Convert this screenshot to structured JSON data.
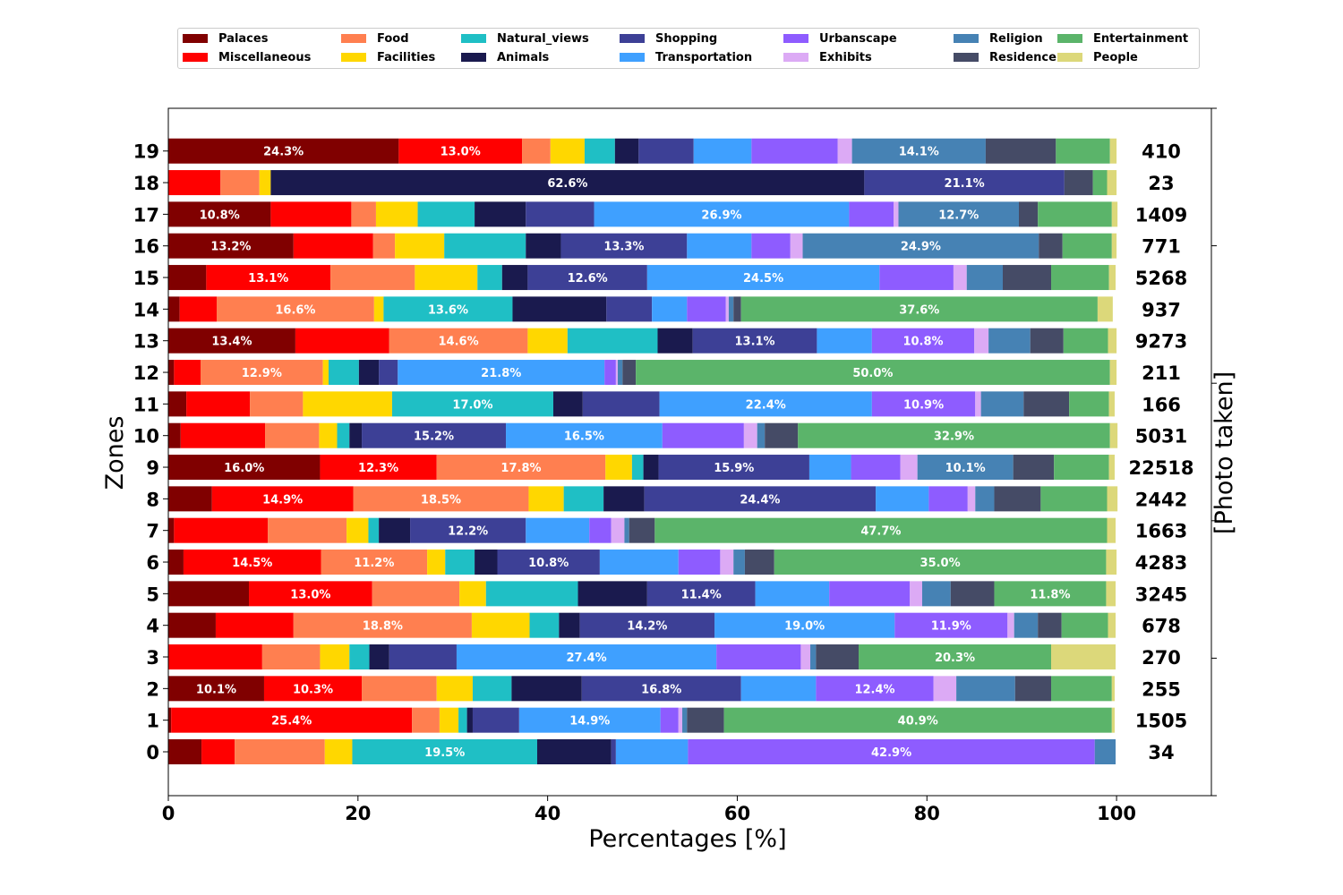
{
  "chart_data": {
    "type": "bar",
    "orientation": "horizontal",
    "stacked": true,
    "xlabel": "Percentages [%]",
    "ylabel": "Zones",
    "right_ylabel": "[Photo taken]",
    "xlim": [
      0,
      110
    ],
    "xticks": [
      0,
      20,
      40,
      60,
      80,
      100
    ],
    "grid": false,
    "legend_position": "top",
    "categories": [
      "19",
      "18",
      "17",
      "16",
      "15",
      "14",
      "13",
      "12",
      "11",
      "10",
      "9",
      "8",
      "7",
      "6",
      "5",
      "4",
      "3",
      "2",
      "1",
      "0"
    ],
    "photo_counts": [
      "410",
      "23",
      "1409",
      "771",
      "5268",
      "937",
      "9273",
      "211",
      "166",
      "5031",
      "22518",
      "2442",
      "1663",
      "4283",
      "3245",
      "678",
      "270",
      "255",
      "1505",
      "34"
    ],
    "series": [
      {
        "name": "Palaces",
        "color": "#800000",
        "values": [
          24.3,
          0,
          10.8,
          13.2,
          4.0,
          1.2,
          13.4,
          0.6,
          1.9,
          1.3,
          16.0,
          4.6,
          0.6,
          1.6,
          8.5,
          5.0,
          0,
          10.1,
          0.3,
          3.5
        ]
      },
      {
        "name": "Miscellaneous",
        "color": "#ff0000",
        "values": [
          13.0,
          5.5,
          8.5,
          8.4,
          13.1,
          3.9,
          9.9,
          2.8,
          6.7,
          8.9,
          12.3,
          14.9,
          9.9,
          14.5,
          13.0,
          8.2,
          9.9,
          10.3,
          25.4,
          3.5
        ]
      },
      {
        "name": "Food",
        "color": "#ff7f50",
        "values": [
          3.0,
          4.1,
          2.6,
          2.3,
          8.9,
          16.6,
          14.6,
          12.9,
          5.6,
          5.7,
          17.8,
          18.5,
          8.3,
          11.2,
          9.2,
          18.8,
          6.1,
          7.9,
          2.9,
          9.5
        ]
      },
      {
        "name": "Facilities",
        "color": "#ffd700",
        "values": [
          3.6,
          1.2,
          4.4,
          5.2,
          6.6,
          1.0,
          4.2,
          0.6,
          9.4,
          1.9,
          2.8,
          3.7,
          2.3,
          1.9,
          2.8,
          6.1,
          3.1,
          3.8,
          2.0,
          2.9
        ]
      },
      {
        "name": "Natural_views",
        "color": "#1fbfc5",
        "values": [
          3.2,
          0,
          6.0,
          8.6,
          2.6,
          13.6,
          9.5,
          3.2,
          17.0,
          1.3,
          1.2,
          4.2,
          1.1,
          3.1,
          9.7,
          3.1,
          2.1,
          4.1,
          0.9,
          19.5
        ]
      },
      {
        "name": "Animals",
        "color": "#1a1a4e",
        "values": [
          2.5,
          62.6,
          5.4,
          3.7,
          2.7,
          9.9,
          3.7,
          2.1,
          3.1,
          1.3,
          1.6,
          4.3,
          3.3,
          2.4,
          7.3,
          2.2,
          2.1,
          7.4,
          0.6,
          7.8
        ]
      },
      {
        "name": "Shopping",
        "color": "#3d4096",
        "values": [
          5.8,
          21.1,
          7.2,
          13.3,
          12.6,
          4.8,
          13.1,
          2.0,
          8.1,
          15.2,
          15.9,
          24.4,
          12.2,
          10.8,
          11.4,
          14.2,
          7.1,
          16.8,
          4.9,
          0.5
        ]
      },
      {
        "name": "Transportation",
        "color": "#3fa0ff",
        "values": [
          6.1,
          0,
          26.9,
          6.8,
          24.5,
          3.7,
          5.8,
          21.8,
          22.4,
          16.5,
          4.4,
          5.6,
          6.7,
          8.3,
          7.8,
          19.0,
          27.4,
          7.9,
          14.9,
          7.6
        ]
      },
      {
        "name": "Urbanscape",
        "color": "#8e5cff",
        "values": [
          9.1,
          0,
          4.7,
          4.1,
          7.8,
          4.1,
          10.8,
          1.2,
          10.9,
          8.6,
          5.2,
          4.1,
          2.3,
          4.4,
          8.5,
          11.9,
          8.9,
          12.4,
          1.9,
          42.9
        ]
      },
      {
        "name": "Exhibits",
        "color": "#dcaaf5",
        "values": [
          1.5,
          0,
          0.5,
          1.3,
          1.4,
          0.3,
          1.5,
          0.2,
          0.6,
          1.4,
          1.8,
          0.8,
          1.4,
          1.4,
          1.3,
          0.7,
          1.0,
          2.4,
          0.4,
          0
        ]
      },
      {
        "name": "Religion",
        "color": "#4682b4",
        "values": [
          14.1,
          0,
          12.7,
          24.9,
          3.8,
          0.5,
          4.4,
          0.5,
          4.5,
          0.8,
          10.1,
          2.0,
          0.5,
          1.2,
          3.0,
          2.5,
          0.6,
          6.2,
          0.5,
          2.2
        ]
      },
      {
        "name": "Residence",
        "color": "#454b66",
        "values": [
          7.4,
          3.0,
          2.0,
          2.5,
          5.1,
          0.8,
          3.5,
          1.4,
          4.8,
          3.5,
          4.3,
          4.9,
          2.7,
          3.1,
          4.6,
          2.5,
          4.5,
          3.8,
          3.9,
          0
        ]
      },
      {
        "name": "Entertainment",
        "color": "#5bb46a",
        "values": [
          5.7,
          1.5,
          7.8,
          5.2,
          6.1,
          37.6,
          4.7,
          50.0,
          4.2,
          32.9,
          5.8,
          7.0,
          47.7,
          35.0,
          11.8,
          4.9,
          20.3,
          6.4,
          40.9,
          0
        ]
      },
      {
        "name": "People",
        "color": "#dcd87a",
        "values": [
          0.7,
          1.0,
          0.6,
          0.5,
          0.7,
          1.6,
          0.9,
          0.7,
          0.6,
          0.8,
          0.6,
          1.1,
          0.9,
          1.1,
          1.0,
          0.8,
          6.8,
          0.3,
          0.3,
          0
        ]
      }
    ],
    "data_labels": [
      {
        "category": "19",
        "series": "Palaces",
        "text": "24.3%"
      },
      {
        "category": "19",
        "series": "Miscellaneous",
        "text": "13.0%"
      },
      {
        "category": "19",
        "series": "Religion",
        "text": "14.1%"
      },
      {
        "category": "18",
        "series": "Animals",
        "text": "62.6%"
      },
      {
        "category": "18",
        "series": "Shopping",
        "text": "21.1%"
      },
      {
        "category": "17",
        "series": "Palaces",
        "text": "10.8%"
      },
      {
        "category": "17",
        "series": "Transportation",
        "text": "26.9%"
      },
      {
        "category": "17",
        "series": "Religion",
        "text": "12.7%"
      },
      {
        "category": "16",
        "series": "Palaces",
        "text": "13.2%"
      },
      {
        "category": "16",
        "series": "Shopping",
        "text": "13.3%"
      },
      {
        "category": "16",
        "series": "Religion",
        "text": "24.9%"
      },
      {
        "category": "15",
        "series": "Miscellaneous",
        "text": "13.1%"
      },
      {
        "category": "15",
        "series": "Shopping",
        "text": "12.6%"
      },
      {
        "category": "15",
        "series": "Transportation",
        "text": "24.5%"
      },
      {
        "category": "14",
        "series": "Food",
        "text": "16.6%"
      },
      {
        "category": "14",
        "series": "Natural_views",
        "text": "13.6%"
      },
      {
        "category": "14",
        "series": "Entertainment",
        "text": "37.6%"
      },
      {
        "category": "13",
        "series": "Palaces",
        "text": "13.4%"
      },
      {
        "category": "13",
        "series": "Food",
        "text": "14.6%"
      },
      {
        "category": "13",
        "series": "Shopping",
        "text": "13.1%"
      },
      {
        "category": "13",
        "series": "Urbanscape",
        "text": "10.8%"
      },
      {
        "category": "12",
        "series": "Food",
        "text": "12.9%"
      },
      {
        "category": "12",
        "series": "Transportation",
        "text": "21.8%"
      },
      {
        "category": "12",
        "series": "Entertainment",
        "text": "50.0%"
      },
      {
        "category": "11",
        "series": "Natural_views",
        "text": "17.0%"
      },
      {
        "category": "11",
        "series": "Transportation",
        "text": "22.4%"
      },
      {
        "category": "11",
        "series": "Urbanscape",
        "text": "10.9%"
      },
      {
        "category": "10",
        "series": "Shopping",
        "text": "15.2%"
      },
      {
        "category": "10",
        "series": "Transportation",
        "text": "16.5%"
      },
      {
        "category": "10",
        "series": "Entertainment",
        "text": "32.9%"
      },
      {
        "category": "9",
        "series": "Palaces",
        "text": "16.0%"
      },
      {
        "category": "9",
        "series": "Miscellaneous",
        "text": "12.3%"
      },
      {
        "category": "9",
        "series": "Food",
        "text": "17.8%"
      },
      {
        "category": "9",
        "series": "Shopping",
        "text": "15.9%"
      },
      {
        "category": "9",
        "series": "Religion",
        "text": "10.1%"
      },
      {
        "category": "8",
        "series": "Miscellaneous",
        "text": "14.9%"
      },
      {
        "category": "8",
        "series": "Food",
        "text": "18.5%"
      },
      {
        "category": "8",
        "series": "Shopping",
        "text": "24.4%"
      },
      {
        "category": "7",
        "series": "Shopping",
        "text": "12.2%"
      },
      {
        "category": "7",
        "series": "Entertainment",
        "text": "47.7%"
      },
      {
        "category": "6",
        "series": "Miscellaneous",
        "text": "14.5%"
      },
      {
        "category": "6",
        "series": "Food",
        "text": "11.2%"
      },
      {
        "category": "6",
        "series": "Shopping",
        "text": "10.8%"
      },
      {
        "category": "6",
        "series": "Entertainment",
        "text": "35.0%"
      },
      {
        "category": "5",
        "series": "Miscellaneous",
        "text": "13.0%"
      },
      {
        "category": "5",
        "series": "Shopping",
        "text": "11.4%"
      },
      {
        "category": "5",
        "series": "Entertainment",
        "text": "11.8%"
      },
      {
        "category": "4",
        "series": "Food",
        "text": "18.8%"
      },
      {
        "category": "4",
        "series": "Shopping",
        "text": "14.2%"
      },
      {
        "category": "4",
        "series": "Transportation",
        "text": "19.0%"
      },
      {
        "category": "4",
        "series": "Urbanscape",
        "text": "11.9%"
      },
      {
        "category": "3",
        "series": "Transportation",
        "text": "27.4%"
      },
      {
        "category": "3",
        "series": "Entertainment",
        "text": "20.3%"
      },
      {
        "category": "2",
        "series": "Palaces",
        "text": "10.1%"
      },
      {
        "category": "2",
        "series": "Miscellaneous",
        "text": "10.3%"
      },
      {
        "category": "2",
        "series": "Shopping",
        "text": "16.8%"
      },
      {
        "category": "2",
        "series": "Urbanscape",
        "text": "12.4%"
      },
      {
        "category": "1",
        "series": "Miscellaneous",
        "text": "25.4%"
      },
      {
        "category": "1",
        "series": "Transportation",
        "text": "14.9%"
      },
      {
        "category": "1",
        "series": "Entertainment",
        "text": "40.9%"
      },
      {
        "category": "0",
        "series": "Natural_views",
        "text": "19.5%"
      },
      {
        "category": "0",
        "series": "Urbanscape",
        "text": "42.9%"
      }
    ]
  }
}
